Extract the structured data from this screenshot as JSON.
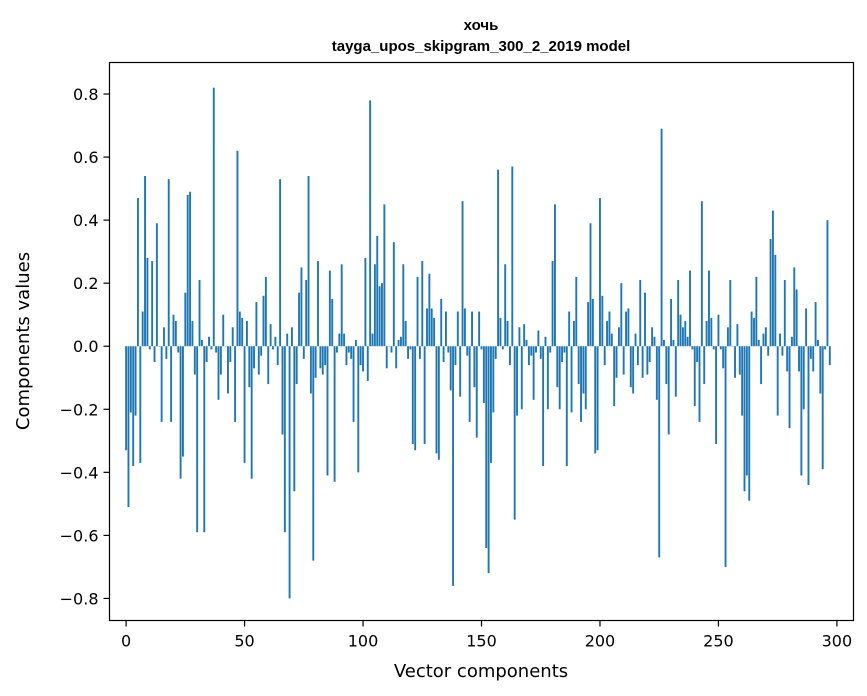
{
  "chart_data": {
    "type": "bar",
    "title": "хочь",
    "subtitle": "tayga_upos_skipgram_300_2_2019 model",
    "xlabel": "Vector components",
    "ylabel": "Components values",
    "xlim": [
      -7,
      307
    ],
    "ylim": [
      -0.87,
      0.9
    ],
    "xticks": [
      0,
      50,
      100,
      150,
      200,
      250,
      300
    ],
    "yticks": [
      -0.8,
      -0.6,
      -0.4,
      -0.2,
      0.0,
      0.2,
      0.4,
      0.6,
      0.8
    ],
    "ytick_labels": [
      "−0.8",
      "−0.6",
      "−0.4",
      "−0.2",
      "0.0",
      "0.2",
      "0.4",
      "0.6",
      "0.8"
    ],
    "bar_color": "#1f77b4",
    "values": [
      -0.33,
      -0.51,
      -0.21,
      -0.38,
      -0.22,
      0.47,
      -0.37,
      0.11,
      0.54,
      0.28,
      -0.01,
      0.27,
      -0.05,
      0.39,
      0.0,
      -0.24,
      0.06,
      -0.04,
      0.53,
      -0.24,
      0.1,
      0.08,
      -0.02,
      -0.42,
      -0.35,
      0.17,
      0.48,
      0.49,
      0.08,
      -0.09,
      -0.59,
      0.21,
      0.02,
      -0.59,
      -0.05,
      0.03,
      -0.01,
      0.82,
      -0.02,
      -0.17,
      -0.09,
      0.1,
      0.0,
      -0.15,
      -0.05,
      0.06,
      -0.24,
      0.62,
      0.11,
      0.09,
      -0.37,
      0.08,
      -0.13,
      -0.42,
      -0.07,
      0.14,
      -0.09,
      -0.03,
      0.16,
      0.22,
      -0.12,
      0.07,
      -0.01,
      0.03,
      -0.06,
      0.53,
      -0.28,
      -0.59,
      0.04,
      -0.8,
      0.06,
      -0.46,
      -0.12,
      0.17,
      0.25,
      -0.04,
      0.21,
      0.54,
      -0.15,
      -0.68,
      -0.1,
      0.27,
      -0.07,
      -0.09,
      -0.06,
      -0.41,
      0.24,
      0.15,
      -0.43,
      -0.02,
      0.04,
      0.26,
      0.04,
      -0.06,
      -0.02,
      -0.04,
      -0.24,
      0.02,
      -0.4,
      -0.06,
      -0.08,
      0.28,
      -0.11,
      0.78,
      0.04,
      0.26,
      0.35,
      0.19,
      0.2,
      0.45,
      -0.07,
      0.0,
      -0.02,
      0.33,
      -0.07,
      0.02,
      0.03,
      0.26,
      0.08,
      -0.04,
      -0.01,
      -0.31,
      -0.33,
      0.22,
      -0.04,
      0.27,
      -0.31,
      0.12,
      0.23,
      0.12,
      0.09,
      -0.34,
      -0.36,
      0.15,
      -0.05,
      0.11,
      -0.02,
      -0.14,
      -0.76,
      -0.06,
      0.11,
      -0.16,
      0.46,
      0.12,
      -0.03,
      -0.24,
      0.11,
      -0.13,
      -0.29,
      0.11,
      -0.01,
      -0.18,
      -0.64,
      -0.72,
      -0.37,
      -0.21,
      -0.04,
      0.56,
      0.09,
      -0.01,
      0.26,
      0.08,
      -0.06,
      0.57,
      -0.55,
      -0.22,
      0.06,
      -0.2,
      0.07,
      0.02,
      -0.06,
      -0.03,
      -0.17,
      -0.02,
      0.05,
      -0.04,
      -0.38,
      0.03,
      -0.2,
      -0.02,
      0.27,
      0.45,
      -0.13,
      -0.2,
      -0.05,
      -0.02,
      -0.38,
      0.11,
      -0.21,
      0.08,
      0.22,
      -0.12,
      -0.24,
      -0.15,
      -0.2,
      0.14,
      0.39,
      0.15,
      -0.34,
      -0.33,
      0.47,
      0.16,
      -0.06,
      0.08,
      0.11,
      0.04,
      -0.19,
      -0.1,
      0.06,
      0.2,
      -0.09,
      0.11,
      0.12,
      -0.13,
      -0.15,
      0.04,
      -0.06,
      0.21,
      -0.1,
      0.17,
      -0.09,
      -0.05,
      0.06,
      0.03,
      -0.17,
      -0.67,
      0.69,
      0.02,
      -0.12,
      -0.28,
      0.15,
      0.02,
      -0.16,
      0.21,
      0.1,
      0.06,
      0.08,
      0.03,
      0.24,
      -0.01,
      -0.19,
      -0.05,
      -0.24,
      0.46,
      -0.12,
      0.08,
      0.24,
      0.09,
      -0.01,
      -0.31,
      0.1,
      -0.01,
      -0.07,
      -0.7,
      0.06,
      0.21,
      0.0,
      -0.1,
      0.07,
      -0.09,
      -0.22,
      -0.46,
      -0.41,
      -0.49,
      0.11,
      0.09,
      0.22,
      0.02,
      -0.12,
      0.04,
      0.06,
      -0.03,
      0.34,
      0.43,
      0.29,
      -0.22,
      0.04,
      -0.03,
      0.21,
      -0.08,
      -0.26,
      0.03,
      0.25,
      0.18,
      -0.08,
      -0.41,
      -0.2,
      0.12,
      -0.44,
      -0.04,
      -0.08,
      0.14,
      0.02,
      -0.15,
      -0.39,
      -0.01,
      0.4,
      -0.06
    ]
  }
}
